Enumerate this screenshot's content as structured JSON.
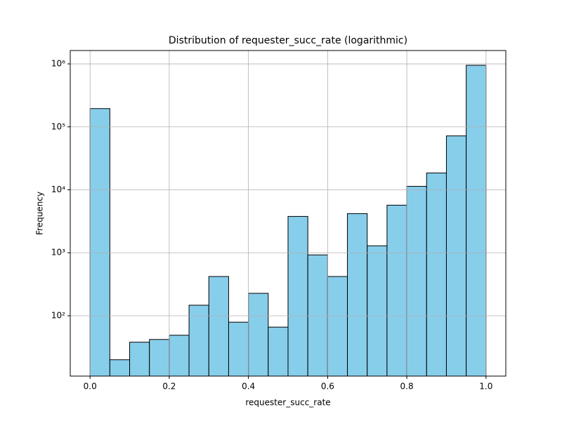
{
  "chart_data": {
    "type": "histogram",
    "title": "Distribution of requester_succ_rate (logarithmic)",
    "xlabel": "requester_succ_rate",
    "ylabel": "Frequency",
    "bins": [
      0,
      0.05,
      0.1,
      0.15,
      0.2,
      0.25,
      0.3,
      0.35,
      0.4,
      0.45,
      0.5,
      0.55,
      0.6,
      0.65,
      0.7,
      0.75,
      0.8,
      0.85,
      0.9,
      0.95,
      1.0
    ],
    "values": [
      195000,
      20,
      38,
      42,
      49,
      147,
      420,
      79,
      227,
      66,
      3780,
      925,
      420,
      4190,
      1290,
      5700,
      11360,
      18500,
      71800,
      950000
    ],
    "color": "#87ceeb",
    "edgecolor": "#000000",
    "xlim": [
      -0.05,
      1.05
    ],
    "xticks": [
      {
        "value": 0,
        "label": "0.0"
      },
      0.2,
      0.4,
      0.6,
      0.8,
      {
        "value": 1.0,
        "label": "1.0"
      }
    ],
    "ylim": [
      11,
      1630000
    ],
    "ylog": true,
    "yticks": [
      {
        "value": 100,
        "label": "10²"
      },
      {
        "value": 1000,
        "label": "10³"
      },
      {
        "value": 10000,
        "label": "10⁴"
      },
      {
        "value": 100000,
        "label": "10⁵"
      },
      {
        "value": 1000000,
        "label": "10⁶"
      }
    ],
    "grid": true
  }
}
